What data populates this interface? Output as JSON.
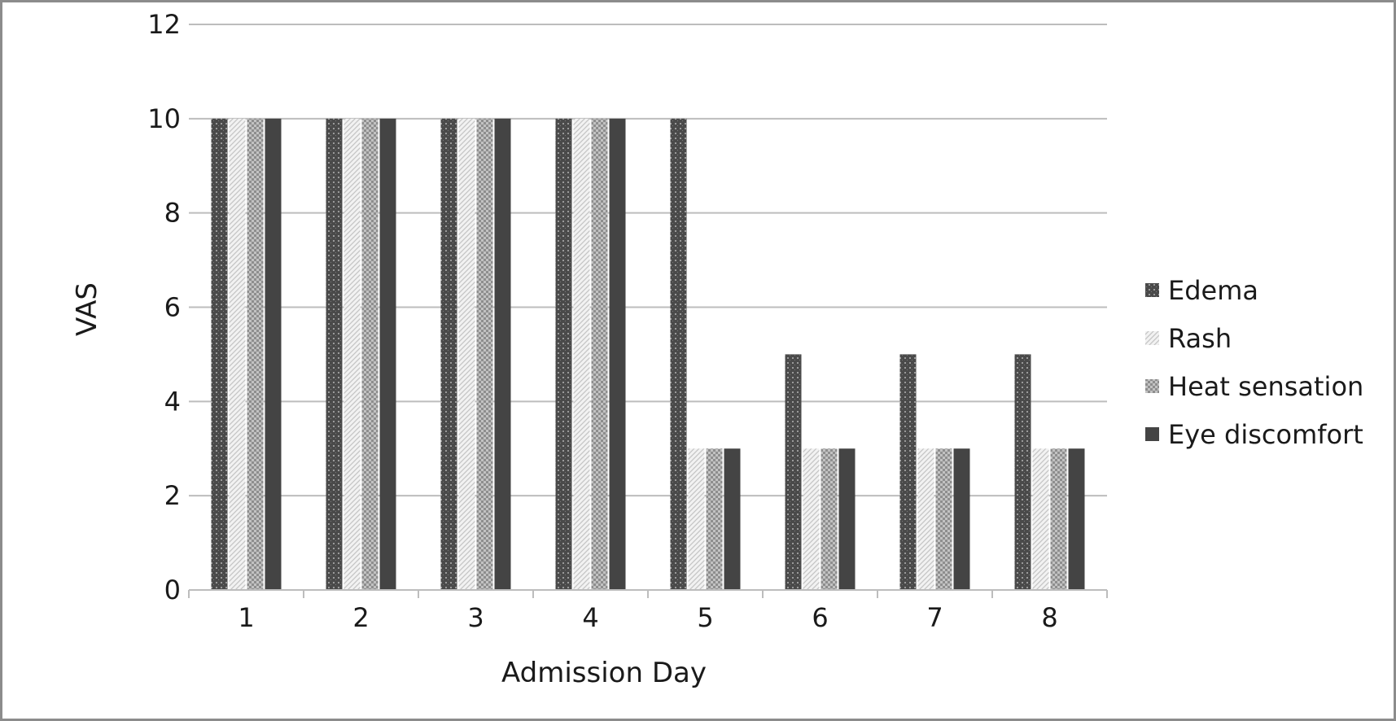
{
  "chart_data": {
    "type": "bar",
    "title": "",
    "xlabel": "Admission Day",
    "ylabel": "VAS",
    "ylim": [
      0,
      12
    ],
    "yticks": [
      0,
      2,
      4,
      6,
      8,
      10,
      12
    ],
    "grid": true,
    "legend": "right",
    "categories": [
      "1",
      "2",
      "3",
      "4",
      "5",
      "6",
      "7",
      "8"
    ],
    "series": [
      {
        "name": "Edema",
        "values": [
          10,
          10,
          10,
          10,
          10,
          5,
          5,
          5
        ],
        "color": "#4a4a4a",
        "pattern": "dotted-dark"
      },
      {
        "name": "Rash",
        "values": [
          10,
          10,
          10,
          10,
          3,
          3,
          3,
          3
        ],
        "color": "#e6e6e6",
        "pattern": "diagonal-light"
      },
      {
        "name": "Heat sensation",
        "values": [
          10,
          10,
          10,
          10,
          3,
          3,
          3,
          3
        ],
        "color": "#b0b0b0",
        "pattern": "checker-medium"
      },
      {
        "name": "Eye discomfort",
        "values": [
          10,
          10,
          10,
          10,
          3,
          3,
          3,
          3
        ],
        "color": "#4a4a4a",
        "pattern": "solid-dark"
      }
    ]
  }
}
